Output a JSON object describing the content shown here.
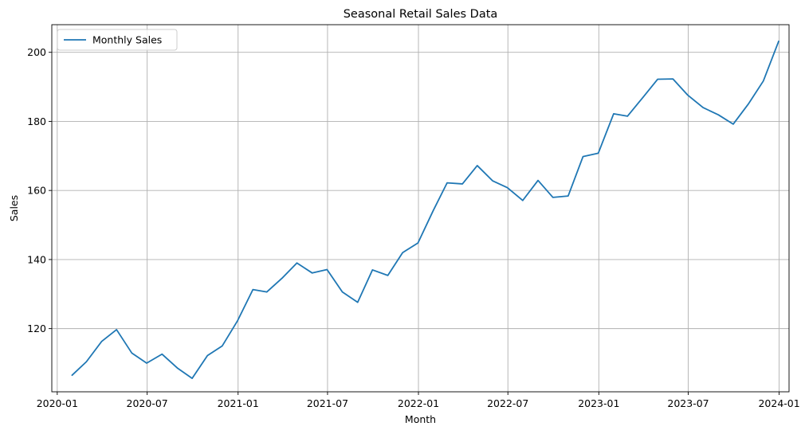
{
  "chart_data": {
    "type": "line",
    "title": "Seasonal Retail Sales Data",
    "xlabel": "Month",
    "ylabel": "Sales",
    "x_ticks": [
      "2020-01",
      "2020-07",
      "2021-01",
      "2021-07",
      "2022-01",
      "2022-07",
      "2023-01",
      "2023-07",
      "2024-01"
    ],
    "y_ticks": [
      120,
      140,
      160,
      180,
      200
    ],
    "xlim": [
      "2019-12-21",
      "2024-01-21"
    ],
    "ylim": [
      101.7,
      208.0
    ],
    "grid": true,
    "legend_position": "top-left",
    "series": [
      {
        "name": "Monthly Sales",
        "color": "#1f77b4",
        "x": [
          "2020-01-31",
          "2020-02-29",
          "2020-03-31",
          "2020-04-30",
          "2020-05-31",
          "2020-06-30",
          "2020-07-31",
          "2020-08-31",
          "2020-09-30",
          "2020-10-31",
          "2020-11-30",
          "2020-12-31",
          "2021-01-31",
          "2021-02-28",
          "2021-03-31",
          "2021-04-30",
          "2021-05-31",
          "2021-06-30",
          "2021-07-31",
          "2021-08-31",
          "2021-09-30",
          "2021-10-31",
          "2021-11-30",
          "2021-12-31",
          "2022-01-31",
          "2022-02-28",
          "2022-03-31",
          "2022-04-30",
          "2022-05-31",
          "2022-06-30",
          "2022-07-31",
          "2022-08-31",
          "2022-09-30",
          "2022-10-31",
          "2022-11-30",
          "2022-12-31",
          "2023-01-31",
          "2023-02-28",
          "2023-03-31",
          "2023-04-30",
          "2023-05-31",
          "2023-06-30",
          "2023-07-31",
          "2023-08-31",
          "2023-09-30",
          "2023-10-31",
          "2023-11-30",
          "2023-12-31"
        ],
        "values": [
          106.5,
          110.4,
          116.3,
          119.7,
          112.9,
          110.0,
          112.6,
          108.6,
          105.6,
          112.2,
          115.0,
          122.3,
          131.3,
          130.6,
          134.6,
          139.0,
          136.1,
          137.1,
          130.6,
          127.6,
          137.0,
          135.4,
          142.0,
          144.8,
          154.2,
          162.2,
          161.9,
          167.2,
          162.8,
          160.8,
          157.1,
          162.9,
          158.0,
          158.4,
          169.8,
          170.8,
          182.2,
          181.5,
          186.9,
          192.2,
          192.3,
          187.6,
          184.0,
          181.9,
          179.2,
          185.1,
          191.7,
          203.2
        ]
      }
    ]
  }
}
